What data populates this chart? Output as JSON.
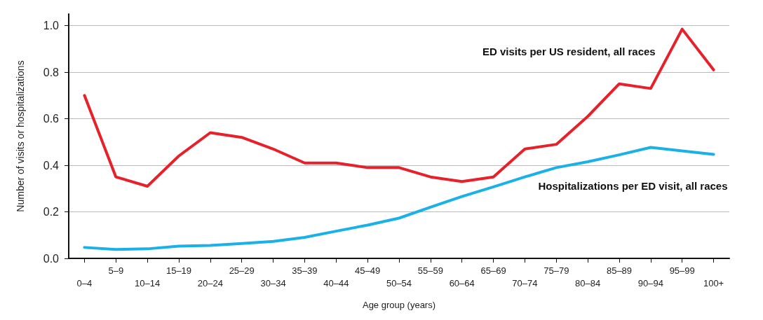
{
  "chart_data": {
    "type": "line",
    "xlabel": "Age group (years)",
    "ylabel": "Number of visits or hospitalizations",
    "categories": [
      "0–4",
      "5–9",
      "10–14",
      "15–19",
      "20–24",
      "25–29",
      "30–34",
      "35–39",
      "40–44",
      "45–49",
      "50–54",
      "55–59",
      "60–64",
      "65–69",
      "70–74",
      "75–79",
      "80–84",
      "85–89",
      "90–94",
      "95–99",
      "100+"
    ],
    "series": [
      {
        "name": "ED visits per US resident, all races",
        "color": "#e8202a",
        "values": [
          0.7,
          0.35,
          0.31,
          0.44,
          0.54,
          0.52,
          0.47,
          0.41,
          0.41,
          0.39,
          0.39,
          0.35,
          0.33,
          0.35,
          0.47,
          0.49,
          0.61,
          0.75,
          0.73,
          0.985,
          0.81
        ]
      },
      {
        "name": "Hospitalizations per ED visit, all races",
        "color": "#1ab0e8",
        "values": [
          0.047,
          0.038,
          0.041,
          0.053,
          0.056,
          0.064,
          0.073,
          0.09,
          0.117,
          0.143,
          0.173,
          0.22,
          0.266,
          0.307,
          0.35,
          0.39,
          0.415,
          0.445,
          0.477,
          0.462,
          0.447
        ]
      }
    ],
    "ylim": [
      0,
      1.05
    ],
    "yticks": [
      {
        "value": 0,
        "label": "0.0"
      },
      {
        "value": 0.2,
        "label": "0.2"
      },
      {
        "value": 0.4,
        "label": "0.4"
      },
      {
        "value": 0.6,
        "label": "0.6"
      },
      {
        "value": 0.8,
        "label": "0.8"
      },
      {
        "value": 1,
        "label": "1.0"
      }
    ],
    "grid": "y",
    "legend": false,
    "marker": "none",
    "line_style": "solid"
  }
}
